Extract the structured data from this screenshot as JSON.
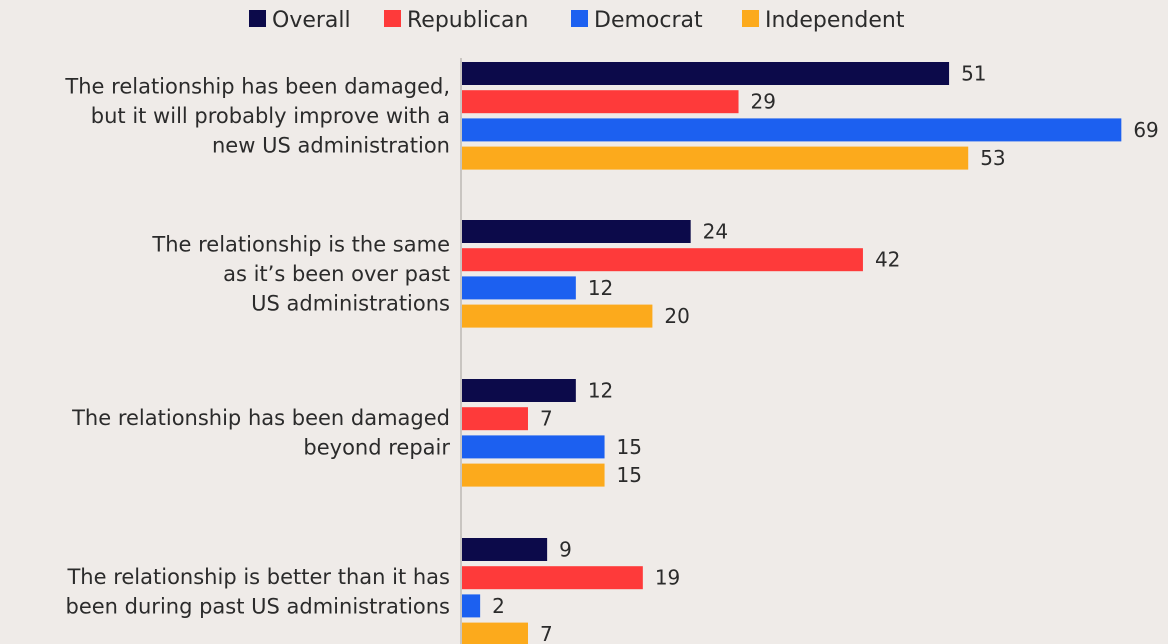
{
  "chart_data": {
    "type": "bar",
    "orientation": "horizontal",
    "grouping": "clustered",
    "title": "",
    "xlabel": "",
    "ylabel": "",
    "xlim": [
      0,
      69
    ],
    "grid": false,
    "legend_position": "top",
    "categories": [
      [
        "The relationship has been damaged,",
        "but it will probably improve with a",
        "new US administration"
      ],
      [
        "The relationship is the same",
        "as it’s been over past",
        "US administrations"
      ],
      [
        "The relationship has been damaged",
        "beyond repair"
      ],
      [
        "The relationship is better than it has",
        "been during past US administrations"
      ]
    ],
    "series": [
      {
        "name": "Overall",
        "color": "#0c0a4a",
        "values": [
          51,
          24,
          12,
          9
        ]
      },
      {
        "name": "Republican",
        "color": "#fe3a3a",
        "values": [
          29,
          42,
          7,
          19
        ]
      },
      {
        "name": "Democrat",
        "color": "#1c60f0",
        "values": [
          69,
          12,
          15,
          2
        ]
      },
      {
        "name": "Independent",
        "color": "#fcaa1c",
        "values": [
          53,
          20,
          15,
          7
        ]
      }
    ]
  }
}
